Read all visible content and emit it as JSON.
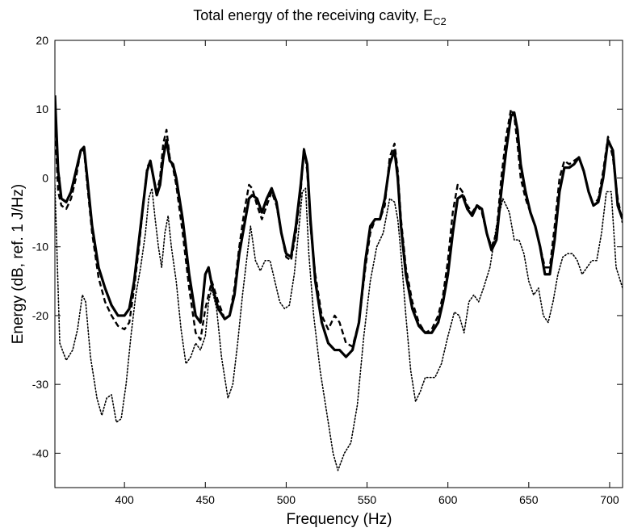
{
  "chart_data": {
    "type": "line",
    "title": "Total energy of the receiving cavity, E",
    "title_subscript": "C2",
    "xlabel": "Frequency (Hz)",
    "ylabel": "Energy (dB, ref. 1 J/Hz)",
    "xlim": [
      357,
      708
    ],
    "ylim": [
      -45,
      20
    ],
    "xticks": [
      400,
      450,
      500,
      550,
      600,
      650,
      700
    ],
    "yticks": [
      -40,
      -30,
      -20,
      -10,
      0,
      10,
      20
    ],
    "xtick_labels": [
      "400",
      "450",
      "500",
      "550",
      "600",
      "650",
      "700"
    ],
    "ytick_labels": [
      "-40",
      "-30",
      "-20",
      "-10",
      "0",
      "10",
      "20"
    ],
    "grid": false,
    "legend": false,
    "series": [
      {
        "style": "solid",
        "color": "#000000",
        "x": [
          357,
          359,
          361,
          364,
          367,
          370,
          373,
          375,
          377,
          380,
          384,
          388,
          392,
          396,
          400,
          403,
          406,
          409,
          412,
          414,
          416,
          418,
          420,
          422,
          424,
          426,
          428,
          430,
          432,
          436,
          440,
          444,
          447,
          450,
          452,
          454,
          458,
          462,
          465,
          468,
          471,
          474,
          477,
          479,
          482,
          485,
          488,
          491,
          494,
          497,
          500,
          503,
          506,
          509,
          511,
          513,
          515,
          518,
          522,
          526,
          530,
          533,
          537,
          541,
          545,
          549,
          552,
          555,
          558,
          561,
          564,
          567,
          569,
          571,
          574,
          578,
          582,
          586,
          590,
          594,
          597,
          600,
          603,
          606,
          609,
          612,
          615,
          618,
          621,
          624,
          627,
          630,
          633,
          636,
          639,
          641,
          643,
          645,
          648,
          651,
          654,
          657,
          660,
          663,
          666,
          669,
          672,
          675,
          678,
          681,
          684,
          687,
          690,
          693,
          696,
          699,
          702,
          705,
          708
        ],
        "y": [
          12,
          1,
          -3,
          -3.5,
          -2,
          1,
          4,
          4.5,
          0,
          -7,
          -13,
          -16,
          -18.5,
          -20,
          -20,
          -19,
          -15,
          -9,
          -3,
          1,
          2.5,
          0,
          -2.5,
          -1,
          3,
          5.5,
          2.5,
          2,
          0,
          -6,
          -14,
          -20,
          -21,
          -14,
          -13,
          -15.5,
          -19,
          -20.5,
          -20,
          -17,
          -11,
          -7,
          -3,
          -2.5,
          -3,
          -5,
          -3,
          -1.5,
          -3.5,
          -8,
          -11,
          -11.5,
          -7,
          -1,
          4,
          2,
          -6,
          -15,
          -21,
          -24,
          -25,
          -25,
          -26,
          -25,
          -21,
          -12,
          -7,
          -6,
          -6,
          -3,
          2,
          4,
          0,
          -7,
          -14,
          -19,
          -21.5,
          -22.5,
          -22.5,
          -21,
          -18,
          -14,
          -8,
          -3,
          -2.5,
          -4.5,
          -5.5,
          -4,
          -4.5,
          -8,
          -10.5,
          -9,
          -2,
          4,
          9,
          9.5,
          7,
          2,
          -2,
          -5,
          -7,
          -10,
          -14,
          -14,
          -9,
          -2,
          1.5,
          1.5,
          2,
          3,
          1,
          -2,
          -4,
          -3.5,
          0,
          5.5,
          4,
          -4,
          -6
        ]
      },
      {
        "style": "dashed",
        "color": "#000000",
        "x": [
          357,
          359,
          361,
          364,
          367,
          370,
          373,
          375,
          377,
          380,
          384,
          388,
          392,
          396,
          400,
          403,
          406,
          409,
          412,
          414,
          416,
          418,
          420,
          422,
          424,
          426,
          428,
          430,
          432,
          436,
          440,
          444,
          447,
          450,
          452,
          454,
          458,
          462,
          465,
          468,
          471,
          474,
          477,
          479,
          482,
          485,
          488,
          491,
          494,
          497,
          500,
          503,
          506,
          509,
          511,
          513,
          515,
          518,
          522,
          526,
          530,
          533,
          537,
          541,
          545,
          549,
          552,
          555,
          558,
          561,
          564,
          567,
          569,
          571,
          574,
          578,
          582,
          586,
          590,
          594,
          597,
          600,
          603,
          606,
          609,
          612,
          615,
          618,
          621,
          624,
          627,
          630,
          633,
          636,
          639,
          641,
          643,
          645,
          648,
          651,
          654,
          657,
          660,
          663,
          666,
          669,
          672,
          675,
          678,
          681,
          684,
          687,
          690,
          693,
          696,
          699,
          702,
          705,
          708
        ],
        "y": [
          8,
          -2,
          -4,
          -4.5,
          -3,
          0,
          4,
          4,
          -1,
          -8,
          -14.5,
          -18,
          -20,
          -21.5,
          -22,
          -21,
          -16,
          -10,
          -3,
          1.5,
          2.5,
          0,
          -2,
          0,
          5,
          7,
          3,
          1.5,
          -1,
          -8,
          -16,
          -22.5,
          -23.5,
          -19,
          -17,
          -15,
          -18,
          -20.5,
          -20,
          -16,
          -10,
          -5,
          -1,
          -1.5,
          -4,
          -6,
          -4,
          -2,
          -4,
          -8,
          -11.5,
          -12,
          -8,
          -2,
          4.5,
          1,
          -7,
          -14,
          -20,
          -22,
          -20,
          -21,
          -24,
          -24.5,
          -21,
          -13,
          -8,
          -6,
          -6,
          -4,
          3,
          5,
          1,
          -6,
          -13,
          -18,
          -21,
          -22.5,
          -22,
          -20,
          -17,
          -12,
          -5,
          -1,
          -2,
          -4,
          -5,
          -4,
          -5,
          -8,
          -10,
          -8,
          0,
          6,
          10,
          9,
          5,
          0,
          -3,
          -5,
          -7,
          -10,
          -13,
          -13,
          -7,
          0,
          2.5,
          2,
          2.5,
          3,
          1,
          -2,
          -4,
          -3,
          1,
          6,
          3,
          -3,
          -6.5
        ]
      },
      {
        "style": "dotted",
        "color": "#000000",
        "x": [
          357,
          360,
          364,
          368,
          371,
          374,
          376,
          379,
          383,
          386,
          389,
          392,
          395,
          398,
          401,
          404,
          407,
          410,
          413,
          415,
          417,
          419,
          421,
          423,
          425,
          427,
          429,
          432,
          435,
          438,
          441,
          444,
          447,
          450,
          452,
          454,
          457,
          460,
          464,
          467,
          470,
          473,
          476,
          478,
          481,
          484,
          487,
          490,
          493,
          496,
          499,
          502,
          505,
          508,
          510,
          512,
          514,
          517,
          521,
          525,
          529,
          532,
          536,
          540,
          544,
          548,
          552,
          556,
          560,
          564,
          567,
          569,
          571,
          574,
          577,
          580,
          583,
          586,
          589,
          592,
          596,
          600,
          604,
          607,
          610,
          613,
          616,
          619,
          622,
          626,
          630,
          634,
          638,
          641,
          644,
          647,
          650,
          653,
          656,
          659,
          662,
          665,
          668,
          671,
          674,
          677,
          680,
          683,
          686,
          689,
          692,
          695,
          698,
          701,
          704,
          708
        ],
        "y": [
          -1,
          -24,
          -26.5,
          -25,
          -22,
          -17,
          -18,
          -26,
          -32,
          -34.5,
          -32,
          -31.5,
          -35.5,
          -35,
          -30,
          -23,
          -17,
          -13,
          -8,
          -3,
          -1.5,
          -6,
          -10,
          -13,
          -8,
          -5.5,
          -10,
          -15,
          -22,
          -27,
          -26,
          -24,
          -25,
          -23,
          -18,
          -16,
          -19,
          -26,
          -32,
          -30,
          -24,
          -17,
          -11,
          -7,
          -12,
          -13.5,
          -12,
          -12,
          -15,
          -18,
          -19,
          -18.5,
          -14,
          -7,
          -2,
          -1.5,
          -11,
          -20,
          -28,
          -34,
          -40,
          -42.5,
          -40,
          -38.5,
          -33,
          -23,
          -15,
          -10,
          -8,
          -3,
          -3.5,
          -6,
          -11,
          -20,
          -28,
          -32.5,
          -31,
          -29,
          -29,
          -29,
          -27,
          -23,
          -19.5,
          -20,
          -22.5,
          -18,
          -17,
          -18,
          -16,
          -13,
          -7,
          -3,
          -5,
          -9,
          -9,
          -11,
          -15,
          -17,
          -16,
          -20,
          -21,
          -18,
          -14,
          -11.5,
          -11,
          -11,
          -12,
          -14,
          -13,
          -12,
          -12,
          -8,
          -2,
          -2,
          -13,
          -16
        ]
      }
    ]
  }
}
